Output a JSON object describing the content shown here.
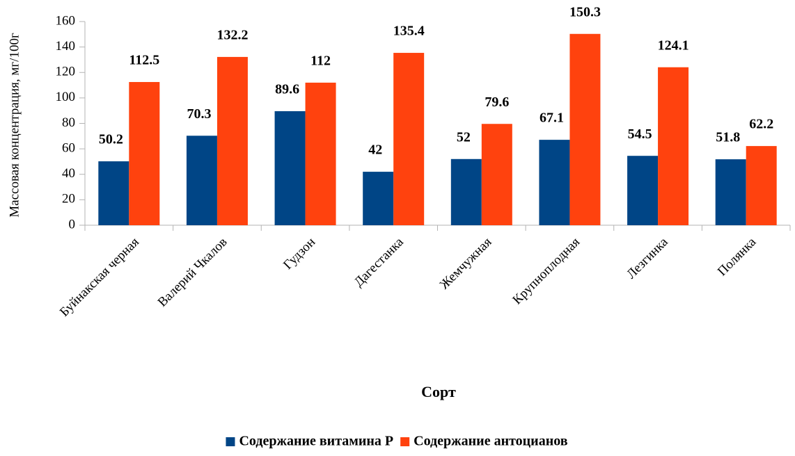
{
  "chart_data": {
    "type": "bar",
    "categories": [
      "Буйнакская черная",
      "Валерий Чкалов",
      "Гудзон",
      "Дагестанка",
      "Жемчужная",
      "Крупноплодная",
      "Лезгинка",
      "Полянка"
    ],
    "series": [
      {
        "name": "Содержание витамина Р",
        "color": "#004586",
        "values": [
          50.2,
          70.3,
          89.6,
          42,
          52,
          67.1,
          54.5,
          51.8
        ]
      },
      {
        "name": "Содержание антоцианов",
        "color": "#ff420e",
        "values": [
          112.5,
          132.2,
          112,
          135.4,
          79.6,
          150.3,
          124.1,
          62.2
        ]
      }
    ],
    "x_label": "Сорт",
    "y_label": "Массовая концентрация, мг/100г",
    "ylim": [
      0,
      160
    ],
    "yticks": [
      0,
      20,
      40,
      60,
      80,
      100,
      120,
      140,
      160
    ],
    "legend": "bottom"
  }
}
